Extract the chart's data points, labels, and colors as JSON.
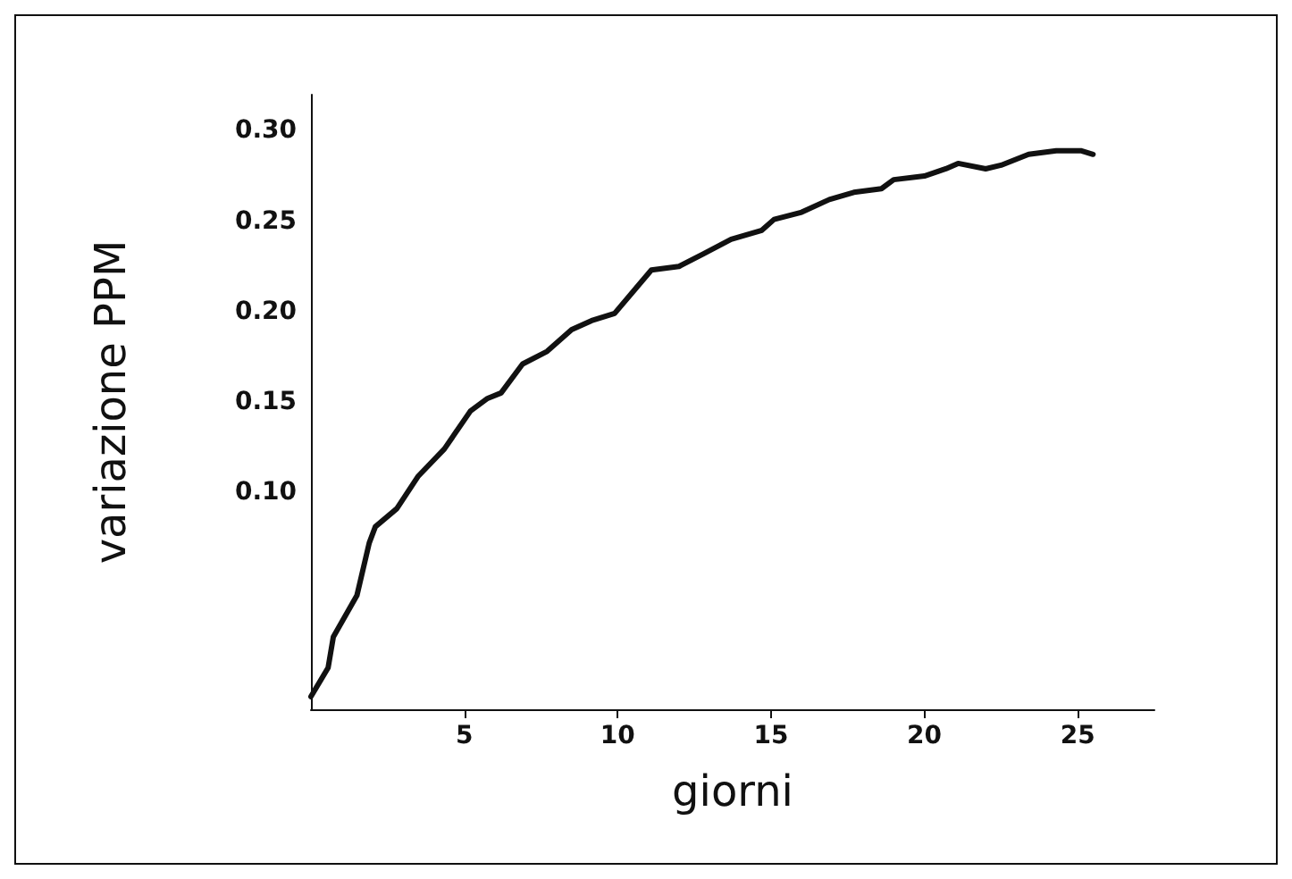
{
  "chart_data": {
    "type": "line",
    "xlabel": "giorni",
    "ylabel": "variazione PPM",
    "series": [
      {
        "color": "#111111",
        "x": [
          0,
          0.56,
          0.73,
          1.5,
          1.9,
          2.1,
          2.8,
          3.5,
          4.35,
          5.2,
          5.76,
          6.2,
          6.9,
          7.7,
          8.5,
          9.15,
          9.9,
          10.6,
          11.1,
          12,
          12.8,
          13.7,
          14.7,
          15.1,
          16,
          16.9,
          17.7,
          18.6,
          19,
          20,
          20.7,
          21.1,
          22,
          22.5,
          23.4,
          24.3,
          25.1,
          25.5
        ],
        "values": [
          -0.013,
          0.003,
          0.02,
          0.043,
          0.072,
          0.081,
          0.091,
          0.109,
          0.124,
          0.145,
          0.152,
          0.155,
          0.171,
          0.178,
          0.19,
          0.195,
          0.199,
          0.213,
          0.223,
          0.225,
          0.232,
          0.24,
          0.245,
          0.251,
          0.255,
          0.262,
          0.266,
          0.268,
          0.273,
          0.275,
          0.279,
          0.282,
          0.279,
          0.281,
          0.287,
          0.289,
          0.289,
          0.287
        ]
      }
    ],
    "xlim": [
      0,
      27.5
    ],
    "xticks": [
      5,
      10,
      15,
      20,
      25
    ],
    "ylim": [
      -0.02,
      0.32
    ],
    "yticks": [
      {
        "value": 0.1,
        "label": "0.10"
      },
      {
        "value": 0.15,
        "label": "0.15"
      },
      {
        "value": 0.2,
        "label": "0.20"
      },
      {
        "value": 0.25,
        "label": "0.25"
      },
      {
        "value": 0.3,
        "label": "0.30"
      }
    ],
    "grid": false,
    "marker": "none",
    "line_style": "solid"
  }
}
